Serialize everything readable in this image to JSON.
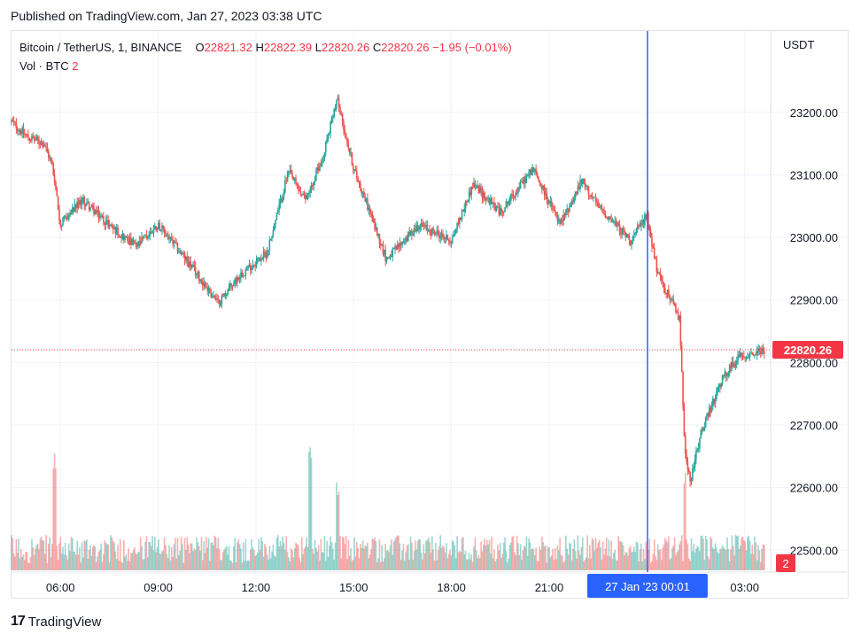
{
  "header": {
    "published_text": "Published on TradingView.com, Jan 27, 2023 03:38 UTC"
  },
  "legend": {
    "symbol_text": "Bitcoin / TetherUS, 1, BINANCE",
    "open_label": "O",
    "open_value": "22821.32",
    "high_label": "H",
    "high_value": "22822.39",
    "low_label": "L",
    "low_value": "22820.26",
    "close_label": "C",
    "close_value": "22820.26",
    "change_text": "−1.95 (−0.01%)",
    "volume_label": "Vol · BTC",
    "volume_value": "2"
  },
  "footer": {
    "logo_text": "TradingView",
    "logo_mark": "17"
  },
  "colors": {
    "up": "#26a69a",
    "down": "#ef5350",
    "price_label_bg": "#f23645",
    "crosshair": "#2962ff",
    "grid": "#f0f3fa"
  },
  "chart_data": {
    "type": "candlestick",
    "currency": "USDT",
    "y_ticks": [
      "23200.00",
      "23100.00",
      "23000.00",
      "22900.00",
      "22800.00",
      "22700.00",
      "22600.00",
      "22500.00"
    ],
    "ylim": [
      22465,
      23330
    ],
    "x_ticks": [
      "06:00",
      "09:00",
      "12:00",
      "15:00",
      "18:00",
      "21:00",
      "03:00"
    ],
    "crosshair_label": "27 Jan '23   00:01",
    "last_price": "22820.26",
    "last_volume": "2",
    "grid": true,
    "price_path": [
      {
        "t": "04:30",
        "p": 23185
      },
      {
        "t": "05:00",
        "p": 23160
      },
      {
        "t": "05:30",
        "p": 23150
      },
      {
        "t": "05:45",
        "p": 23115
      },
      {
        "t": "06:00",
        "p": 23020
      },
      {
        "t": "06:40",
        "p": 23060
      },
      {
        "t": "07:30",
        "p": 23020
      },
      {
        "t": "08:20",
        "p": 22985
      },
      {
        "t": "09:00",
        "p": 23020
      },
      {
        "t": "10:00",
        "p": 22955
      },
      {
        "t": "10:50",
        "p": 22895
      },
      {
        "t": "11:30",
        "p": 22940
      },
      {
        "t": "12:20",
        "p": 22975
      },
      {
        "t": "13:00",
        "p": 23105
      },
      {
        "t": "13:30",
        "p": 23060
      },
      {
        "t": "14:00",
        "p": 23120
      },
      {
        "t": "14:30",
        "p": 23220
      },
      {
        "t": "15:00",
        "p": 23110
      },
      {
        "t": "15:30",
        "p": 23040
      },
      {
        "t": "16:00",
        "p": 22965
      },
      {
        "t": "17:00",
        "p": 23020
      },
      {
        "t": "18:00",
        "p": 22995
      },
      {
        "t": "18:40",
        "p": 23085
      },
      {
        "t": "19:30",
        "p": 23040
      },
      {
        "t": "20:30",
        "p": 23110
      },
      {
        "t": "21:20",
        "p": 23020
      },
      {
        "t": "22:00",
        "p": 23090
      },
      {
        "t": "22:30",
        "p": 23050
      },
      {
        "t": "23:30",
        "p": 22995
      },
      {
        "t": "00:00",
        "p": 23035
      },
      {
        "t": "00:20",
        "p": 22940
      },
      {
        "t": "00:50",
        "p": 22890
      },
      {
        "t": "01:00",
        "p": 22870
      },
      {
        "t": "01:10",
        "p": 22660
      },
      {
        "t": "01:20",
        "p": 22610
      },
      {
        "t": "01:40",
        "p": 22690
      },
      {
        "t": "02:20",
        "p": 22775
      },
      {
        "t": "02:50",
        "p": 22810
      },
      {
        "t": "03:38",
        "p": 22820
      }
    ],
    "volume_spikes": [
      {
        "t": "05:50",
        "v": 28
      },
      {
        "t": "13:40",
        "v": 30
      },
      {
        "t": "14:30",
        "v": 20
      },
      {
        "t": "01:10",
        "v": 24
      }
    ]
  }
}
